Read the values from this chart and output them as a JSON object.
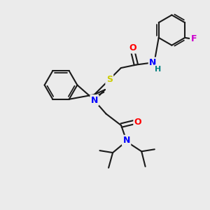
{
  "background_color": "#ebebeb",
  "bond_color": "#1a1a1a",
  "bond_width": 1.5,
  "atom_colors": {
    "O": "#ff0000",
    "N": "#0000ff",
    "N_h": "#008080",
    "S": "#cccc00",
    "F": "#cc00cc",
    "C": "#1a1a1a"
  },
  "figsize": [
    3.0,
    3.0
  ],
  "dpi": 100
}
